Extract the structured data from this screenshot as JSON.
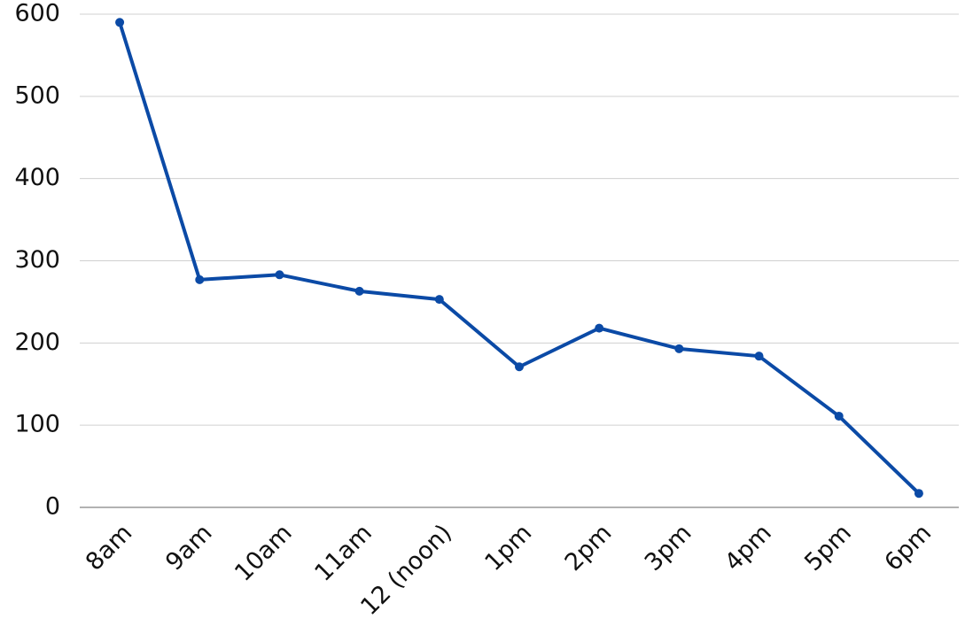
{
  "chart_data": {
    "type": "line",
    "categories": [
      "8am",
      "9am",
      "10am",
      "11am",
      "12 (noon)",
      "1pm",
      "2pm",
      "3pm",
      "4pm",
      "5pm",
      "6pm"
    ],
    "series": [
      {
        "name": null,
        "color": "#0b4aa6",
        "values": [
          590,
          277,
          283,
          263,
          253,
          171,
          218,
          193,
          184,
          111,
          17
        ]
      }
    ],
    "ylim": [
      0,
      600
    ],
    "yticks": [
      0,
      100,
      200,
      300,
      400,
      500,
      600
    ],
    "grid": true
  }
}
